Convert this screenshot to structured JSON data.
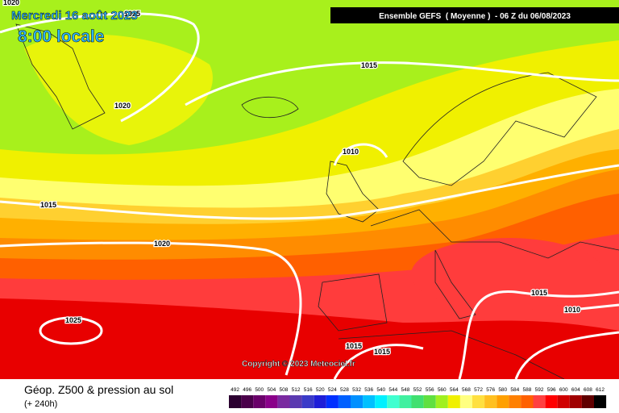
{
  "header": {
    "date": "Mercredi 16 août 2023",
    "time": "8:00 locale",
    "run": "Ensemble GEFS  ( Moyenne )  - 06 Z du 06/08/2023"
  },
  "isobar_labels": [
    "1020",
    "1025",
    "1020",
    "1015",
    "1010",
    "1015",
    "1020",
    "1025",
    "1015",
    "1015",
    "1015",
    "1010"
  ],
  "copyright": "Copyright © 2023 Meteociel.fr",
  "footer": {
    "title": "Géop. Z500 & pression au sol",
    "subtitle": "(+ 240h)"
  },
  "legend": {
    "labels": [
      492,
      496,
      500,
      504,
      508,
      512,
      516,
      520,
      524,
      528,
      532,
      536,
      540,
      544,
      548,
      552,
      556,
      560,
      564,
      568,
      572,
      576,
      580,
      584,
      588,
      592,
      596,
      600,
      604,
      608,
      612
    ],
    "colors": [
      "#2b0030",
      "#4a004a",
      "#6a006a",
      "#8a008a",
      "#7a2aa0",
      "#5a3ab0",
      "#3a3ac8",
      "#1e1ed8",
      "#0030ff",
      "#0060ff",
      "#0090ff",
      "#00c0ff",
      "#00f0ff",
      "#40ffd0",
      "#40f0a0",
      "#40e070",
      "#60e040",
      "#a0f020",
      "#f0f000",
      "#ffff80",
      "#ffe040",
      "#ffc020",
      "#ffa000",
      "#ff8000",
      "#ff6000",
      "#ff4040",
      "#ff0000",
      "#d00000",
      "#a00000",
      "#600000",
      "#000000"
    ]
  }
}
